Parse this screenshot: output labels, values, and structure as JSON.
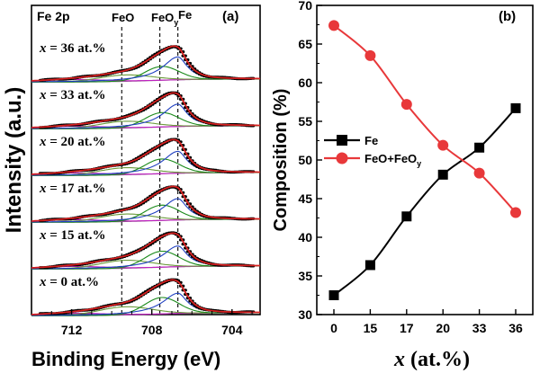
{
  "chart_data": [
    {
      "type": "line",
      "panel_label": "(a)",
      "title": "",
      "inset_title": "Fe 2p",
      "xlabel": "Binding Energy (eV)",
      "ylabel": "Intensity (a.u.)",
      "xlim": [
        714.0,
        702.6
      ],
      "x_ticks": [
        {
          "value": 712,
          "label": "712"
        },
        {
          "value": 708,
          "label": "708"
        },
        {
          "value": 704,
          "label": "704"
        }
      ],
      "reference_lines": [
        {
          "name": "FeO",
          "label": "FeO",
          "position_ev": 709.5
        },
        {
          "name": "FeOy",
          "label": "FeO",
          "subscript": "y",
          "position_ev": 707.6
        },
        {
          "name": "Fe",
          "label": "Fe",
          "position_ev": 706.7
        }
      ],
      "spectra": [
        {
          "prefix": "x",
          "label": " = 36 at.%",
          "fe_fraction": 56.7
        },
        {
          "prefix": "x",
          "label": " = 33 at.%",
          "fe_fraction": 51.6
        },
        {
          "prefix": "x",
          "label": " = 20 at.%",
          "fe_fraction": 48.1
        },
        {
          "prefix": "x",
          "label": " = 17 at.%",
          "fe_fraction": 42.7
        },
        {
          "prefix": "x",
          "label": " = 15 at.%",
          "fe_fraction": 36.4
        },
        {
          "prefix": "x",
          "label": " = 0 at.%",
          "fe_fraction": 32.5
        }
      ],
      "components": [
        {
          "name": "measured",
          "color": "#000000"
        },
        {
          "name": "envelope-fit",
          "color": "#d62020"
        },
        {
          "name": "Fe-metal",
          "color": "#2040c0"
        },
        {
          "name": "FeOy",
          "color": "#1a8a1a"
        },
        {
          "name": "FeO",
          "color": "#6a9a3a"
        },
        {
          "name": "satellite",
          "color": "#c020c0"
        },
        {
          "name": "background",
          "color": "#8a5a8a"
        }
      ]
    },
    {
      "type": "line",
      "panel_label": "(b)",
      "title": "",
      "xlabel_prefix": "x",
      "xlabel": " (at.%)",
      "ylabel": "Composition (%)",
      "ylim": [
        30,
        70
      ],
      "y_ticks": [
        30,
        35,
        40,
        45,
        50,
        55,
        60,
        65,
        70
      ],
      "categories": [
        "0",
        "15",
        "17",
        "20",
        "33",
        "36"
      ],
      "series": [
        {
          "name": "Fe",
          "label": "Fe",
          "color": "#000000",
          "marker": "square",
          "values": [
            32.5,
            36.4,
            42.7,
            48.1,
            51.6,
            56.7
          ]
        },
        {
          "name": "FeO+FeOy",
          "label": "FeO+FeO",
          "label_sub": "y",
          "color": "#e8383a",
          "marker": "circle",
          "values": [
            67.4,
            63.5,
            57.2,
            51.9,
            48.3,
            43.2
          ]
        }
      ],
      "legend_position": "center-left"
    }
  ]
}
